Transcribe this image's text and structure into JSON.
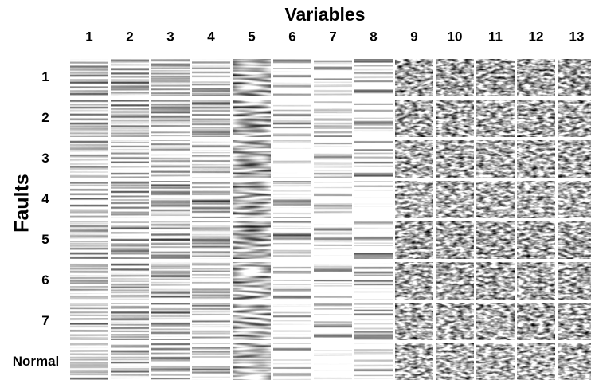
{
  "title": "Variables",
  "columns": [
    "1",
    "2",
    "3",
    "4",
    "5",
    "6",
    "7",
    "8",
    "9",
    "10",
    "11",
    "12",
    "13"
  ],
  "row_axis_label": "Faults",
  "rows": [
    "1",
    "2",
    "3",
    "4",
    "5",
    "6",
    "7",
    "Normal"
  ]
}
